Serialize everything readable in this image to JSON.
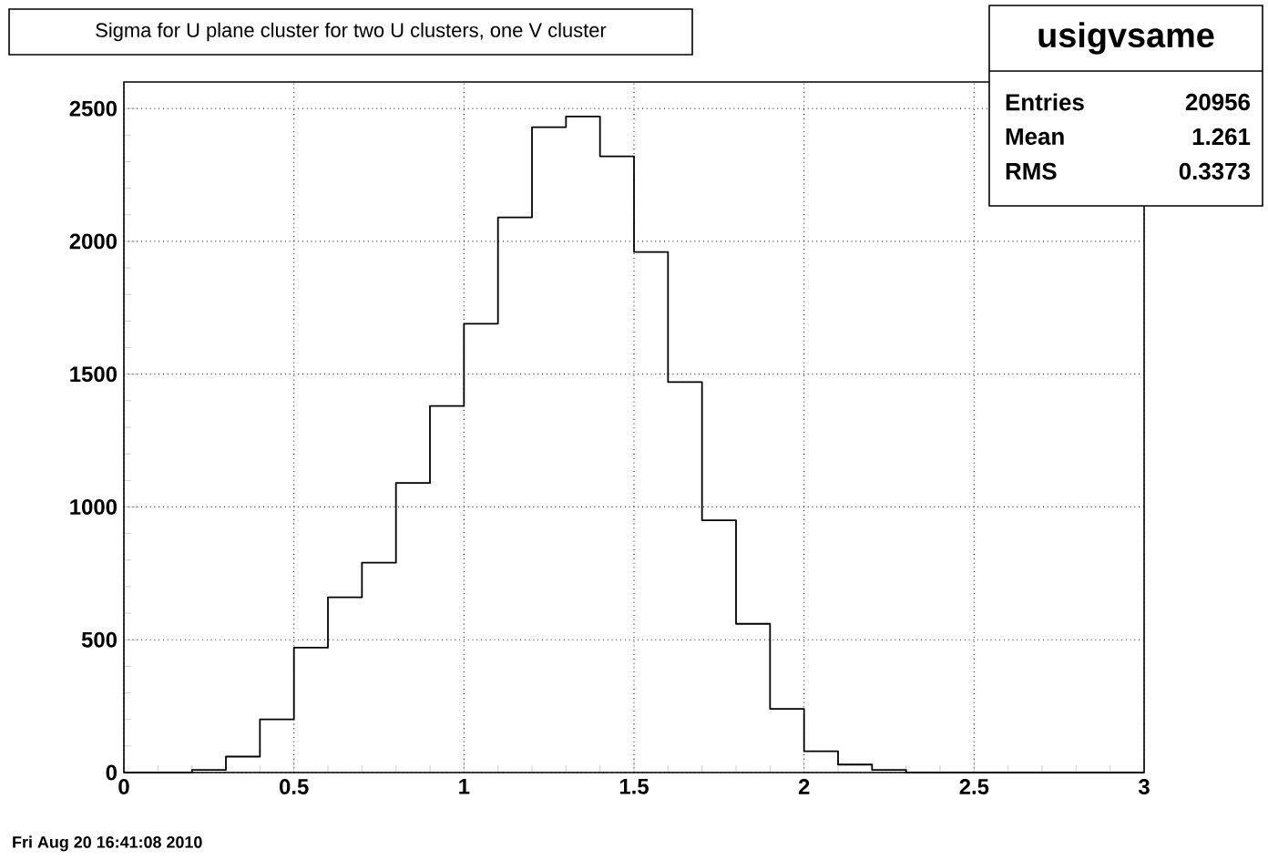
{
  "chart_data": {
    "type": "histogram",
    "title": "Sigma for U plane cluster for two U clusters, one V cluster",
    "bins": [
      0,
      0.1,
      0.2,
      0.3,
      0.4,
      0.5,
      0.6,
      0.7,
      0.8,
      0.9,
      1.0,
      1.1,
      1.2,
      1.3,
      1.4,
      1.5,
      1.6,
      1.7,
      1.8,
      1.9,
      2.0,
      2.1,
      2.2,
      2.3,
      2.4,
      2.5,
      2.6,
      2.7,
      2.8,
      2.9,
      3.0
    ],
    "values": [
      0,
      0,
      10,
      60,
      200,
      470,
      660,
      790,
      1090,
      1380,
      1690,
      2090,
      2430,
      2470,
      2320,
      1960,
      1470,
      950,
      560,
      240,
      80,
      30,
      10,
      0,
      0,
      0,
      0,
      0,
      0,
      0
    ],
    "color": "#000000",
    "xlim": [
      0,
      3
    ],
    "ylim": [
      0,
      2600
    ],
    "xticks": [
      0,
      0.5,
      1,
      1.5,
      2,
      2.5,
      3
    ],
    "yticks": [
      0,
      500,
      1000,
      1500,
      2000,
      2500
    ],
    "grid": true,
    "annotations": [
      "usigvsame",
      "Entries",
      "20956",
      "Mean",
      "1.261",
      "RMS",
      "0.3373",
      "Fri Aug 20 16:41:08 2010"
    ]
  }
}
